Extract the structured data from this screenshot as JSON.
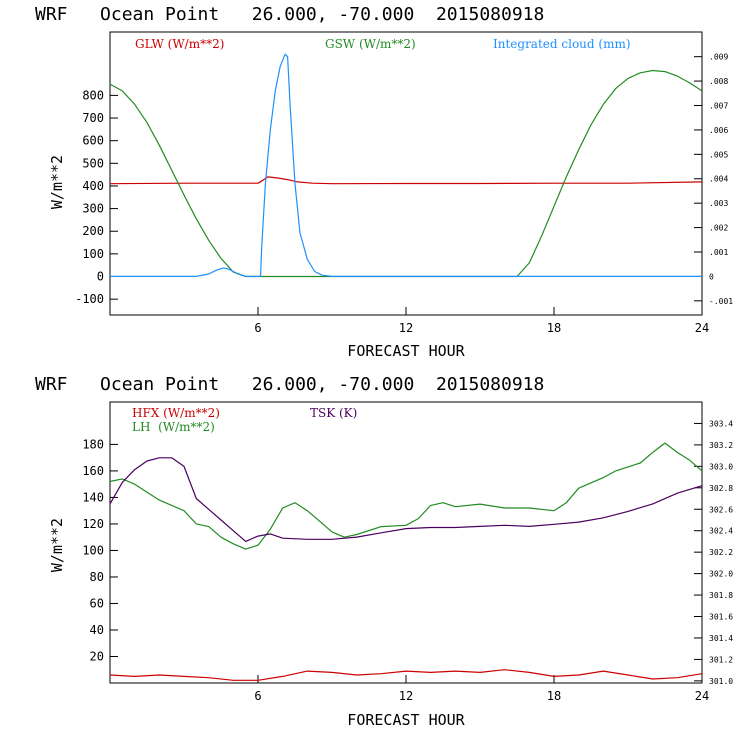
{
  "chart_data": [
    {
      "type": "line",
      "title": "WRF   Ocean Point   26.000, -70.000  2015080918",
      "xlabel": "FORECAST HOUR",
      "ylabel": "W/m**2",
      "xlim": [
        0,
        24
      ],
      "ylim": [
        -170,
        1080
      ],
      "y2lim": [
        -0.00158,
        0.01001
      ],
      "x_ticks": [
        {
          "value": 6,
          "label": "6"
        },
        {
          "value": 12,
          "label": "12"
        },
        {
          "value": 18,
          "label": "18"
        },
        {
          "value": 24,
          "label": "24"
        }
      ],
      "y_ticks": [
        {
          "value": -100,
          "label": "-100"
        },
        {
          "value": 0,
          "label": "0"
        },
        {
          "value": 100,
          "label": "100"
        },
        {
          "value": 200,
          "label": "200"
        },
        {
          "value": 300,
          "label": "300"
        },
        {
          "value": 400,
          "label": "400"
        },
        {
          "value": 500,
          "label": "500"
        },
        {
          "value": 600,
          "label": "600"
        },
        {
          "value": 700,
          "label": "700"
        },
        {
          "value": 800,
          "label": "800"
        }
      ],
      "y2_ticks": [
        {
          "value": -0.001,
          "label": "-.001"
        },
        {
          "value": 0,
          "label": "0"
        },
        {
          "value": 0.001,
          "label": ".001"
        },
        {
          "value": 0.002,
          "label": ".002"
        },
        {
          "value": 0.003,
          "label": ".003"
        },
        {
          "value": 0.004,
          "label": ".004"
        },
        {
          "value": 0.005,
          "label": ".005"
        },
        {
          "value": 0.006,
          "label": ".006"
        },
        {
          "value": 0.007,
          "label": ".007"
        },
        {
          "value": 0.008,
          "label": ".008"
        },
        {
          "value": 0.009,
          "label": ".009"
        }
      ],
      "legend": [
        {
          "label": "GLW (W/m**2)",
          "color": "#cc0000"
        },
        {
          "label": "GSW (W/m**2)",
          "color": "#228b22"
        },
        {
          "label": "Integrated cloud (mm)",
          "color": "#1e90ff"
        }
      ],
      "series": [
        {
          "name": "GLW (W/m**2)",
          "color": "#cc0000",
          "axis": "left",
          "x": [
            0,
            3,
            6,
            6.2,
            6.4,
            6.8,
            7.2,
            7.6,
            8.2,
            9,
            12,
            15,
            18,
            21,
            24
          ],
          "y": [
            410,
            412,
            412,
            425,
            440,
            435,
            428,
            418,
            412,
            410,
            411,
            411,
            412,
            412,
            418
          ]
        },
        {
          "name": "GSW (W/m**2)",
          "color": "#228b22",
          "axis": "left",
          "x": [
            0,
            0.5,
            1,
            1.5,
            2,
            2.5,
            3,
            3.5,
            4,
            4.5,
            5,
            5.5,
            6,
            16.5,
            17,
            17.5,
            18,
            18.5,
            19,
            19.5,
            20,
            20.5,
            21,
            21.5,
            22,
            22.5,
            23,
            23.5,
            24
          ],
          "y": [
            850,
            820,
            760,
            680,
            580,
            470,
            360,
            255,
            160,
            80,
            20,
            0,
            0,
            0,
            60,
            180,
            310,
            440,
            560,
            670,
            760,
            830,
            875,
            900,
            910,
            905,
            885,
            855,
            820
          ]
        },
        {
          "name": "Integrated cloud (mm)",
          "color": "#1e90ff",
          "axis": "right",
          "x": [
            0,
            3.5,
            4,
            4.3,
            4.6,
            4.8,
            5,
            5.2,
            5.5,
            6.1,
            6.15,
            6.3,
            6.5,
            6.7,
            6.9,
            7.1,
            7.2,
            7.3,
            7.5,
            7.7,
            8,
            8.3,
            8.6,
            9,
            24
          ],
          "y": [
            0,
            0,
            0.0001,
            0.00025,
            0.00035,
            0.0003,
            0.0002,
            0.0001,
            0,
            0,
            0.0012,
            0.0038,
            0.006,
            0.0076,
            0.0086,
            0.0091,
            0.009,
            0.007,
            0.0038,
            0.0018,
            0.0007,
            0.0002,
            5e-05,
            0,
            0
          ]
        }
      ]
    },
    {
      "type": "line",
      "title": "WRF   Ocean Point   26.000, -70.000  2015080918",
      "xlabel": "FORECAST HOUR",
      "ylabel": "W/m**2",
      "xlim": [
        0,
        24
      ],
      "ylim": [
        0,
        212
      ],
      "y2lim": [
        300.98,
        303.6
      ],
      "x_ticks": [
        {
          "value": 6,
          "label": "6"
        },
        {
          "value": 12,
          "label": "12"
        },
        {
          "value": 18,
          "label": "18"
        },
        {
          "value": 24,
          "label": "24"
        }
      ],
      "y_ticks": [
        {
          "value": 20,
          "label": "20"
        },
        {
          "value": 40,
          "label": "40"
        },
        {
          "value": 60,
          "label": "60"
        },
        {
          "value": 80,
          "label": "80"
        },
        {
          "value": 100,
          "label": "100"
        },
        {
          "value": 120,
          "label": "120"
        },
        {
          "value": 140,
          "label": "140"
        },
        {
          "value": 160,
          "label": "160"
        },
        {
          "value": 180,
          "label": "180"
        }
      ],
      "y2_ticks": [
        {
          "value": 301.0,
          "label": "301.0"
        },
        {
          "value": 301.2,
          "label": "301.2"
        },
        {
          "value": 301.4,
          "label": "301.4"
        },
        {
          "value": 301.6,
          "label": "301.6"
        },
        {
          "value": 301.8,
          "label": "301.8"
        },
        {
          "value": 302.0,
          "label": "302.0"
        },
        {
          "value": 302.2,
          "label": "302.2"
        },
        {
          "value": 302.4,
          "label": "302.4"
        },
        {
          "value": 302.6,
          "label": "302.6"
        },
        {
          "value": 302.8,
          "label": "302.8"
        },
        {
          "value": 303.0,
          "label": "303.0"
        },
        {
          "value": 303.2,
          "label": "303.2"
        },
        {
          "value": 303.4,
          "label": "303.4"
        }
      ],
      "legend": [
        {
          "label": "HFX (W/m**2)",
          "color": "#cc0000"
        },
        {
          "label": "LH  (W/m**2)",
          "color": "#228b22"
        },
        {
          "label": "TSK (K)",
          "color": "#4b0060"
        }
      ],
      "series": [
        {
          "name": "HFX (W/m**2)",
          "color": "#cc0000",
          "axis": "left",
          "x": [
            0,
            1,
            2,
            3,
            4,
            5,
            6,
            7,
            8,
            9,
            10,
            11,
            12,
            13,
            14,
            15,
            16,
            17,
            18,
            19,
            20,
            21,
            22,
            23,
            24
          ],
          "y": [
            6,
            5,
            6,
            5,
            4,
            2,
            2,
            5,
            9,
            8,
            6,
            7,
            9,
            8,
            9,
            8,
            10,
            8,
            5,
            6,
            9,
            6,
            3,
            4,
            7
          ]
        },
        {
          "name": "LH  (W/m**2)",
          "color": "#228b22",
          "axis": "left",
          "x": [
            0,
            0.5,
            1,
            2,
            3,
            3.5,
            4,
            4.5,
            5,
            5.5,
            6,
            6.5,
            7,
            7.5,
            8,
            8.5,
            9,
            9.5,
            10,
            11,
            12,
            12.5,
            13,
            13.5,
            14,
            15,
            16,
            17,
            18,
            18.5,
            19,
            20,
            20.5,
            21,
            21.5,
            22,
            22.5,
            23,
            23.5,
            24
          ],
          "y": [
            152,
            154,
            150,
            138,
            130,
            120,
            118,
            110,
            105,
            101,
            104,
            116,
            132,
            136,
            130,
            122,
            114,
            110,
            112,
            118,
            119,
            124,
            134,
            136,
            133,
            135,
            132,
            132,
            130,
            136,
            147,
            155,
            160,
            163,
            166,
            174,
            181,
            174,
            168,
            160
          ]
        },
        {
          "name": "TSK (K)",
          "color": "#4b0060",
          "axis": "right",
          "x": [
            0,
            0.5,
            1,
            1.5,
            2,
            2.5,
            3,
            3.5,
            4,
            4.5,
            5,
            5.5,
            6,
            6.5,
            7,
            8,
            9,
            10,
            11,
            12,
            13,
            14,
            15,
            16,
            17,
            18,
            19,
            20,
            21,
            22,
            23,
            24
          ],
          "y": [
            302.65,
            302.85,
            302.97,
            303.05,
            303.08,
            303.08,
            303.0,
            302.7,
            302.6,
            302.5,
            302.4,
            302.3,
            302.35,
            302.37,
            302.33,
            302.32,
            302.32,
            302.34,
            302.38,
            302.42,
            302.43,
            302.43,
            302.44,
            302.45,
            302.44,
            302.46,
            302.48,
            302.52,
            302.58,
            302.65,
            302.75,
            302.82
          ]
        }
      ]
    }
  ]
}
